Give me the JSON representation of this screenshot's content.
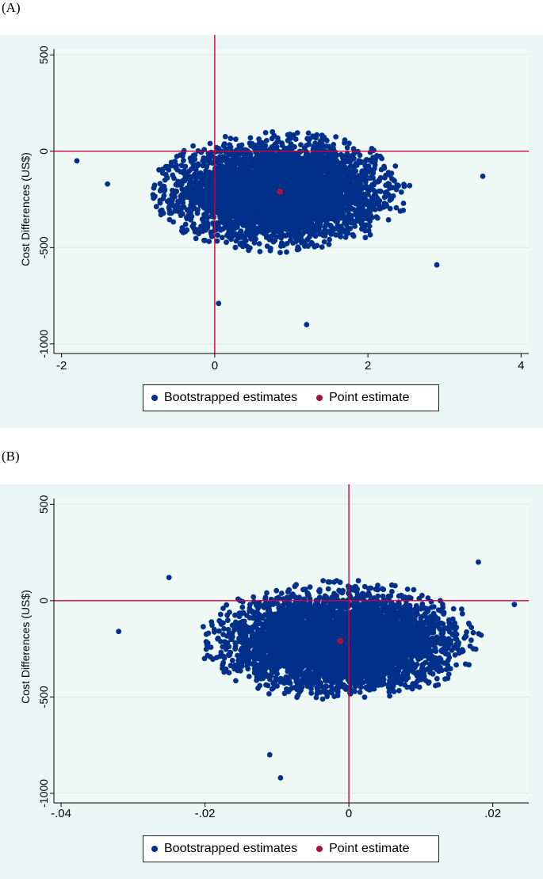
{
  "figure": {
    "panel_a_label": "(A)",
    "panel_b_label": "(B)"
  },
  "colors": {
    "bootstrap": "#00308a",
    "point": "#a3143c",
    "axis_line": "#d1003f",
    "background": "#eaf6f3"
  },
  "chart_data": [
    {
      "type": "scatter",
      "panel": "A",
      "title": "",
      "xlabel": "",
      "ylabel": "Cost Differences (US$)",
      "xlim": [
        -2.1,
        4.1
      ],
      "ylim": [
        -1050,
        530
      ],
      "xticks": [
        -2,
        0,
        2,
        4
      ],
      "xtick_labels": [
        "-2",
        "0",
        "2",
        "4"
      ],
      "yticks": [
        500,
        0,
        -500,
        -1000
      ],
      "ytick_labels": [
        "500",
        "0",
        "-500",
        "-1000"
      ],
      "reference_lines": {
        "x": 0,
        "y": 0
      },
      "grid": true,
      "legend_position": "bottom",
      "series": [
        {
          "name": "Bootstrapped estimates",
          "kind": "cloud",
          "center": [
            0.85,
            -210
          ],
          "spread": [
            0.62,
            115
          ],
          "extent_x": [
            -1.9,
            3.5
          ],
          "extent_y": [
            -900,
            240
          ]
        },
        {
          "name": "Point estimate",
          "kind": "point",
          "x": 0.85,
          "y": -210
        }
      ],
      "outliers": [
        [
          1.2,
          -900
        ],
        [
          0.05,
          -790
        ],
        [
          -1.4,
          -170
        ],
        [
          3.5,
          -130
        ],
        [
          -1.8,
          -50
        ],
        [
          2.9,
          -590
        ]
      ]
    },
    {
      "type": "scatter",
      "panel": "B",
      "title": "",
      "xlabel": "",
      "ylabel": "Cost Differences (US$)",
      "xlim": [
        -0.041,
        0.025
      ],
      "ylim": [
        -1050,
        530
      ],
      "xticks": [
        -0.04,
        -0.02,
        0,
        0.02
      ],
      "xtick_labels": [
        "-.04",
        "-.02",
        "0",
        ".02"
      ],
      "yticks": [
        500,
        0,
        -500,
        -1000
      ],
      "ytick_labels": [
        "500",
        "0",
        "-500",
        "-1000"
      ],
      "reference_lines": {
        "x": 0,
        "y": 0
      },
      "grid": true,
      "legend_position": "bottom",
      "series": [
        {
          "name": "Bootstrapped estimates",
          "kind": "cloud",
          "center": [
            -0.0012,
            -210
          ],
          "spread": [
            0.0072,
            115
          ],
          "extent_x": [
            -0.026,
            0.023
          ],
          "extent_y": [
            -920,
            230
          ]
        },
        {
          "name": "Point estimate",
          "kind": "point",
          "x": -0.0012,
          "y": -210
        }
      ],
      "outliers": [
        [
          -0.032,
          -160
        ],
        [
          -0.0095,
          -920
        ],
        [
          -0.011,
          -800
        ],
        [
          -0.025,
          120
        ],
        [
          0.023,
          -20
        ],
        [
          0.018,
          200
        ]
      ]
    }
  ]
}
